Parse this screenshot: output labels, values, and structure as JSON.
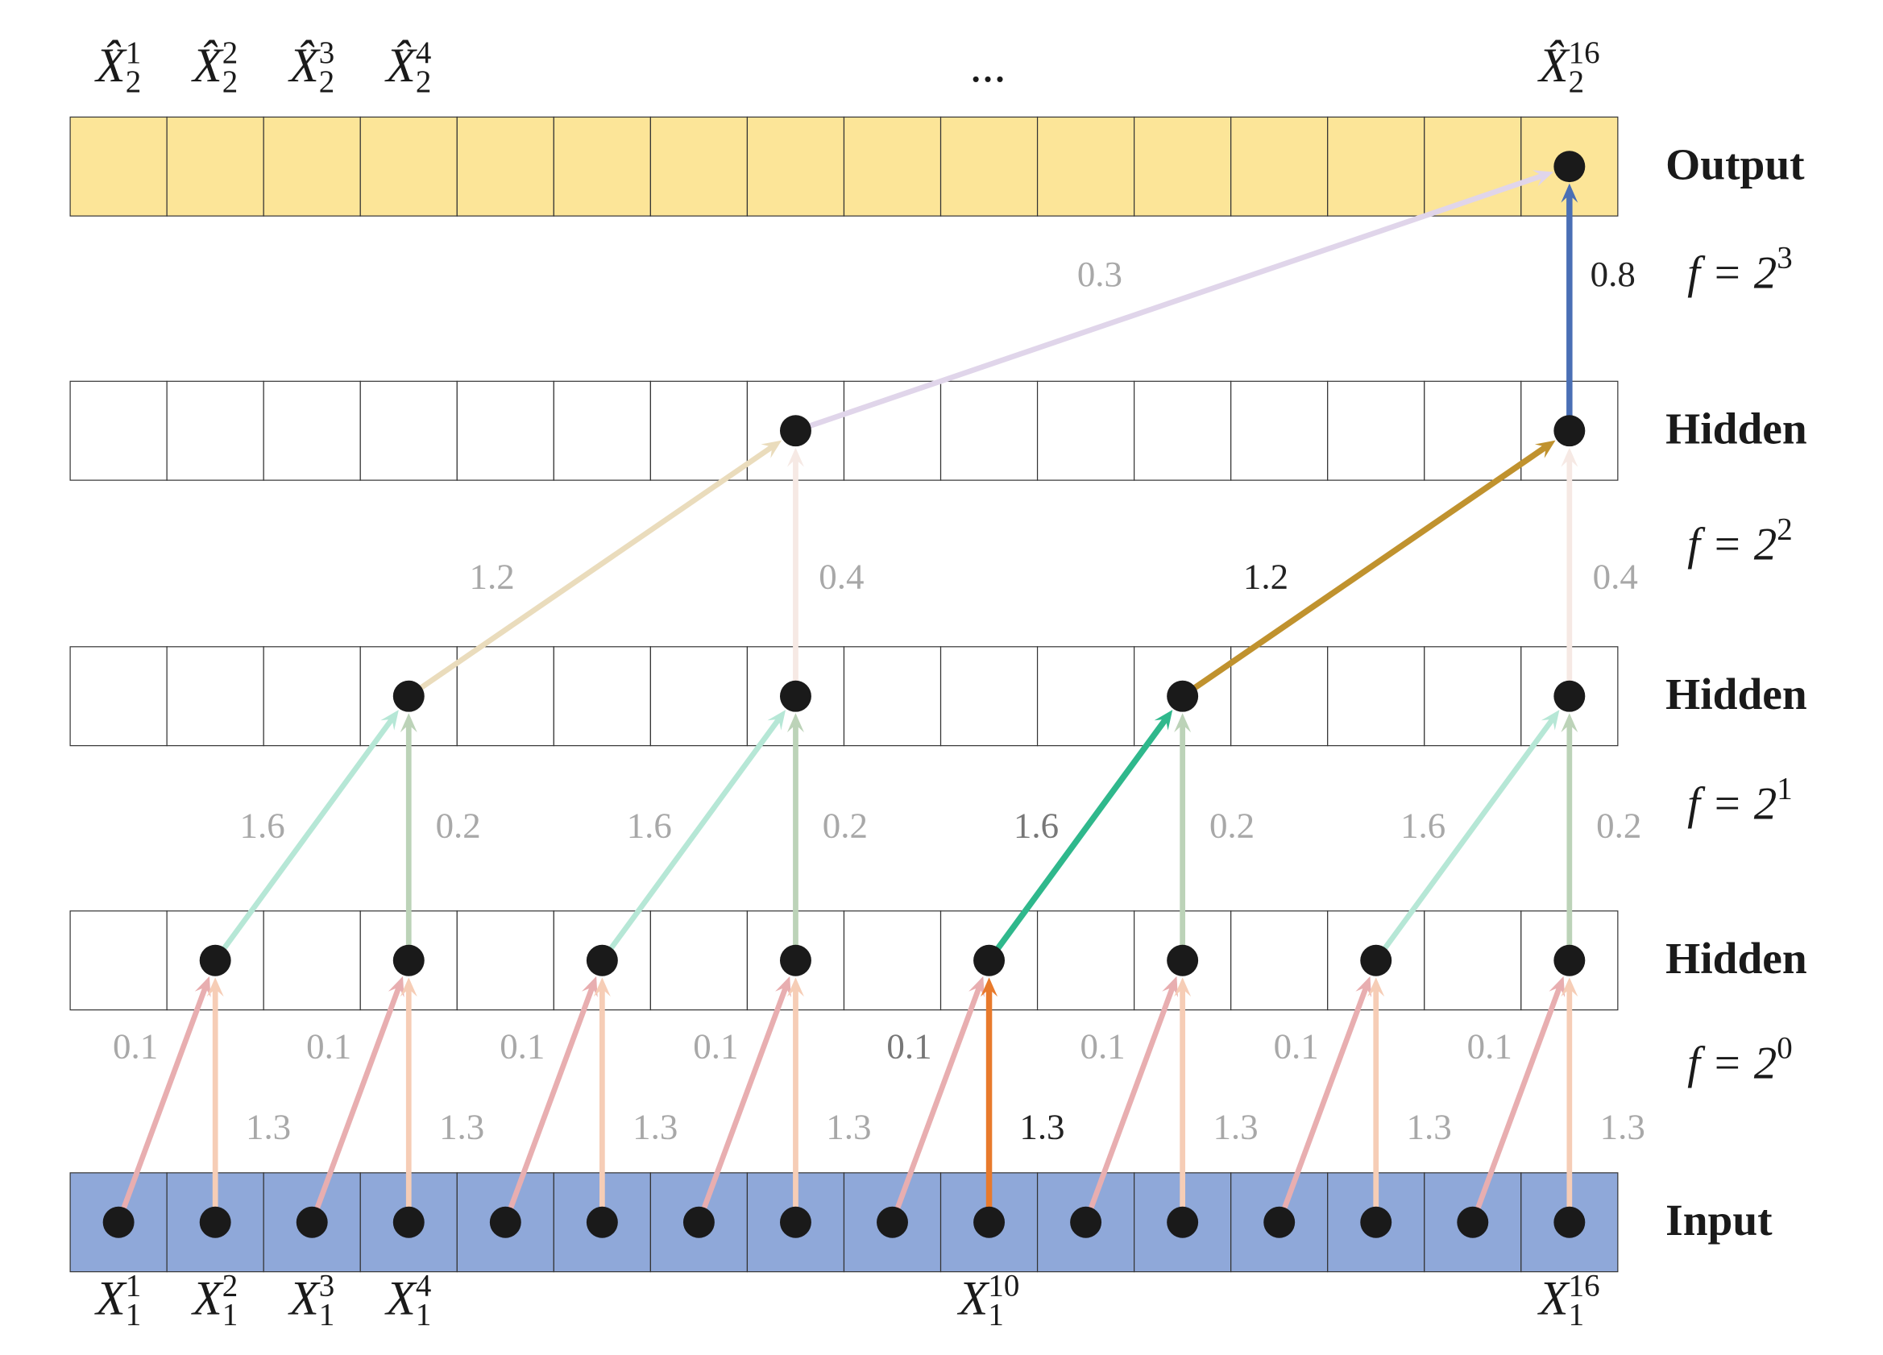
{
  "top_labels": [
    {
      "symbol": "X̂",
      "sub": "2",
      "sup": "1"
    },
    {
      "symbol": "X̂",
      "sub": "2",
      "sup": "2"
    },
    {
      "symbol": "X̂",
      "sub": "2",
      "sup": "3"
    },
    {
      "symbol": "X̂",
      "sub": "2",
      "sup": "4"
    },
    {
      "symbol": "..."
    },
    {
      "symbol": "X̂",
      "sub": "2",
      "sup": "16"
    }
  ],
  "bottom_labels": [
    {
      "symbol": "X",
      "sub": "1",
      "sup": "1"
    },
    {
      "symbol": "X",
      "sub": "1",
      "sup": "2"
    },
    {
      "symbol": "X",
      "sub": "1",
      "sup": "3"
    },
    {
      "symbol": "X",
      "sub": "1",
      "sup": "4"
    },
    {
      "symbol": "X",
      "sub": "1",
      "sup": "10"
    },
    {
      "symbol": "X",
      "sub": "1",
      "sup": "16"
    }
  ],
  "layers": [
    "Input",
    "Hidden",
    "Hidden",
    "Hidden",
    "Output"
  ],
  "dilations": [
    {
      "text": "f = 2",
      "exp": "0"
    },
    {
      "text": "f = 2",
      "exp": "1"
    },
    {
      "text": "f = 2",
      "exp": "2"
    },
    {
      "text": "f = 2",
      "exp": "3"
    }
  ],
  "weights": [
    [
      {
        "skip": "0.1",
        "direct": "1.3"
      },
      {
        "skip": "0.1",
        "direct": "1.3"
      },
      {
        "skip": "0.1",
        "direct": "1.3"
      },
      {
        "skip": "0.1",
        "direct": "1.3"
      },
      {
        "skip": "0.1",
        "direct": "1.3"
      },
      {
        "skip": "0.1",
        "direct": "1.3"
      },
      {
        "skip": "0.1",
        "direct": "1.3"
      },
      {
        "skip": "0.1",
        "direct": "1.3"
      }
    ],
    [
      {
        "skip": "1.6",
        "direct": "0.2"
      },
      {
        "skip": "1.6",
        "direct": "0.2"
      },
      {
        "skip": "1.6",
        "direct": "0.2"
      },
      {
        "skip": "1.6",
        "direct": "0.2"
      }
    ],
    [
      {
        "skip": "1.2",
        "direct": "0.4"
      },
      {
        "skip": "1.2",
        "direct": "0.4"
      }
    ],
    [
      {
        "skip": "0.3",
        "direct": "0.8"
      }
    ]
  ]
}
